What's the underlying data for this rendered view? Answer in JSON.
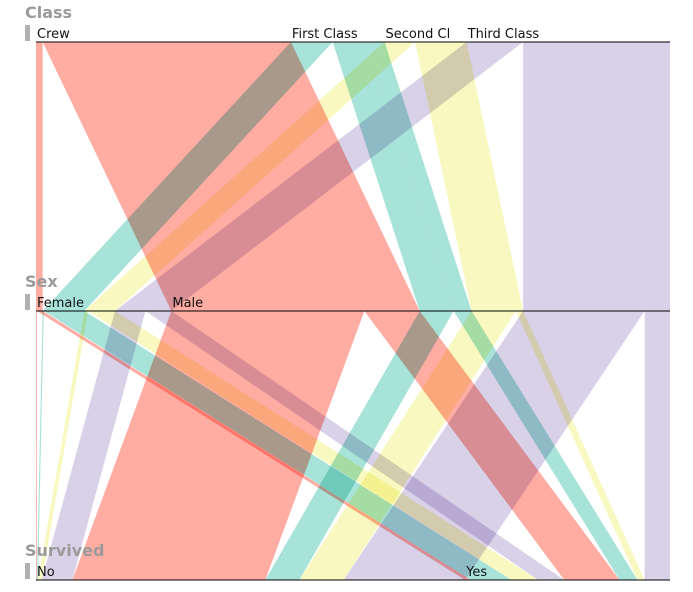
{
  "chart_data": {
    "type": "parallel-sets",
    "dimensions": [
      {
        "name": "Class",
        "categories": [
          "Crew",
          "First Class",
          "Second Cl",
          "Third Class"
        ]
      },
      {
        "name": "Sex",
        "categories": [
          "Female",
          "Male"
        ]
      },
      {
        "name": "Survived",
        "categories": [
          "No",
          "Yes"
        ]
      }
    ],
    "category_colors": {
      "Crew": "#ff9a8f",
      "First Class": "#95ddd2",
      "Second Cl": "#f8f7b2",
      "Third Class": "#cfc7e3"
    },
    "flows": [
      {
        "class": "Crew",
        "sex": "Female",
        "survived": "No",
        "count": 3
      },
      {
        "class": "Crew",
        "sex": "Female",
        "survived": "Yes",
        "count": 20
      },
      {
        "class": "Crew",
        "sex": "Male",
        "survived": "No",
        "count": 670
      },
      {
        "class": "Crew",
        "sex": "Male",
        "survived": "Yes",
        "count": 192
      },
      {
        "class": "First Class",
        "sex": "Female",
        "survived": "No",
        "count": 4
      },
      {
        "class": "First Class",
        "sex": "Female",
        "survived": "Yes",
        "count": 141
      },
      {
        "class": "First Class",
        "sex": "Male",
        "survived": "No",
        "count": 118
      },
      {
        "class": "First Class",
        "sex": "Male",
        "survived": "Yes",
        "count": 62
      },
      {
        "class": "Second Cl",
        "sex": "Female",
        "survived": "No",
        "count": 13
      },
      {
        "class": "Second Cl",
        "sex": "Female",
        "survived": "Yes",
        "count": 93
      },
      {
        "class": "Second Cl",
        "sex": "Male",
        "survived": "No",
        "count": 154
      },
      {
        "class": "Second Cl",
        "sex": "Male",
        "survived": "Yes",
        "count": 25
      },
      {
        "class": "Third Class",
        "sex": "Female",
        "survived": "No",
        "count": 106
      },
      {
        "class": "Third Class",
        "sex": "Female",
        "survived": "Yes",
        "count": 90
      },
      {
        "class": "Third Class",
        "sex": "Male",
        "survived": "No",
        "count": 422
      },
      {
        "class": "Third Class",
        "sex": "Male",
        "survived": "Yes",
        "count": 88
      }
    ]
  }
}
